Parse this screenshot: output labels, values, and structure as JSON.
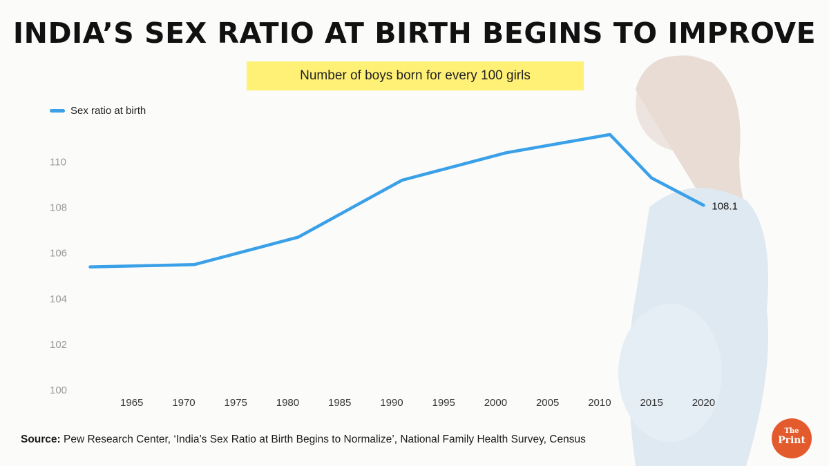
{
  "title": "INDIA’S SEX RATIO AT BIRTH BEGINS TO IMPROVE",
  "subtitle": "Number of boys born for every 100 girls",
  "source": {
    "label": "Source:",
    "text": "Pew Research Center, ‘India’s Sex Ratio at Birth Begins to Normalize’, National Family Health Survey, Census"
  },
  "logo": {
    "small": "The",
    "main": "Print"
  },
  "colors": {
    "line": "#3aa0e8",
    "highlight": "#fff176",
    "logo": "#e35b2c"
  },
  "chart_data": {
    "type": "line",
    "title": "India’s sex ratio at birth begins to improve",
    "ylabel": "",
    "xlabel": "",
    "series": [
      {
        "name": "Sex ratio at birth",
        "x": [
          1961,
          1971,
          1981,
          1991,
          2001,
          2011,
          2015,
          2020
        ],
        "values": [
          105.4,
          105.5,
          106.7,
          109.2,
          110.4,
          111.2,
          109.3,
          108.1
        ]
      }
    ],
    "end_label": "108.1",
    "xlim": [
      1960.3,
      2022.5
    ],
    "ylim": [
      100,
      111.5
    ],
    "yticks": [
      "100",
      "102",
      "104",
      "106",
      "108",
      "110"
    ],
    "xticks": [
      "1965",
      "1970",
      "1975",
      "1980",
      "1985",
      "1990",
      "1995",
      "2000",
      "2005",
      "2010",
      "2015",
      "2020"
    ],
    "legend_position": "top-left",
    "grid": false
  }
}
